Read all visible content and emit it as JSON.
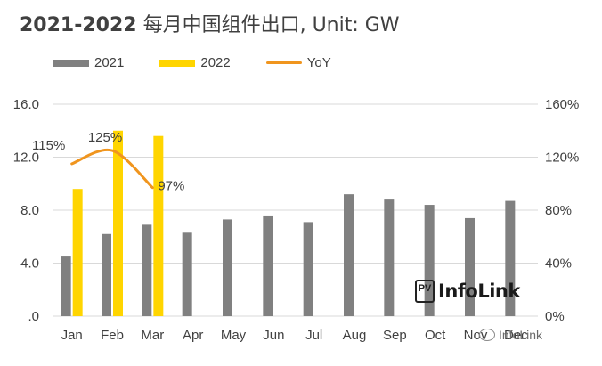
{
  "title_bold": "2021-2022",
  "title_rest": " 每月中国组件出口, Unit: GW",
  "colors": {
    "s2021": "#808080",
    "s2022": "#FFD500",
    "yoy": "#F0951E",
    "grid": "#d9d9d9",
    "text": "#404040"
  },
  "logo_text": "InfoLink",
  "logo_mark": "PV",
  "watermark": "InfoLink",
  "chart_data": {
    "type": "bar",
    "categories": [
      "Jan",
      "Feb",
      "Mar",
      "Apr",
      "May",
      "Jun",
      "Jul",
      "Aug",
      "Sep",
      "Oct",
      "Nov",
      "Dec"
    ],
    "y_ticks": [
      "16.0",
      "12.0",
      "8.0",
      "4.0",
      ".0"
    ],
    "y2_ticks": [
      "160%",
      "120%",
      "80%",
      "40%",
      "0%"
    ],
    "ylim": [
      0,
      16
    ],
    "y2lim": [
      0,
      160
    ],
    "series": [
      {
        "name": "2021",
        "type": "bar",
        "values": [
          4.5,
          6.2,
          6.9,
          6.3,
          7.3,
          7.6,
          7.1,
          9.2,
          8.8,
          8.4,
          7.4,
          8.7
        ]
      },
      {
        "name": "2022",
        "type": "bar",
        "values": [
          9.6,
          14.0,
          13.6,
          null,
          null,
          null,
          null,
          null,
          null,
          null,
          null,
          null
        ]
      },
      {
        "name": "YoY",
        "type": "line",
        "axis": "right",
        "values": [
          115,
          125,
          97,
          null,
          null,
          null,
          null,
          null,
          null,
          null,
          null,
          null
        ],
        "labels": [
          "115%",
          "125%",
          "97%"
        ]
      }
    ],
    "legend_position": "top-left",
    "grid": true
  }
}
